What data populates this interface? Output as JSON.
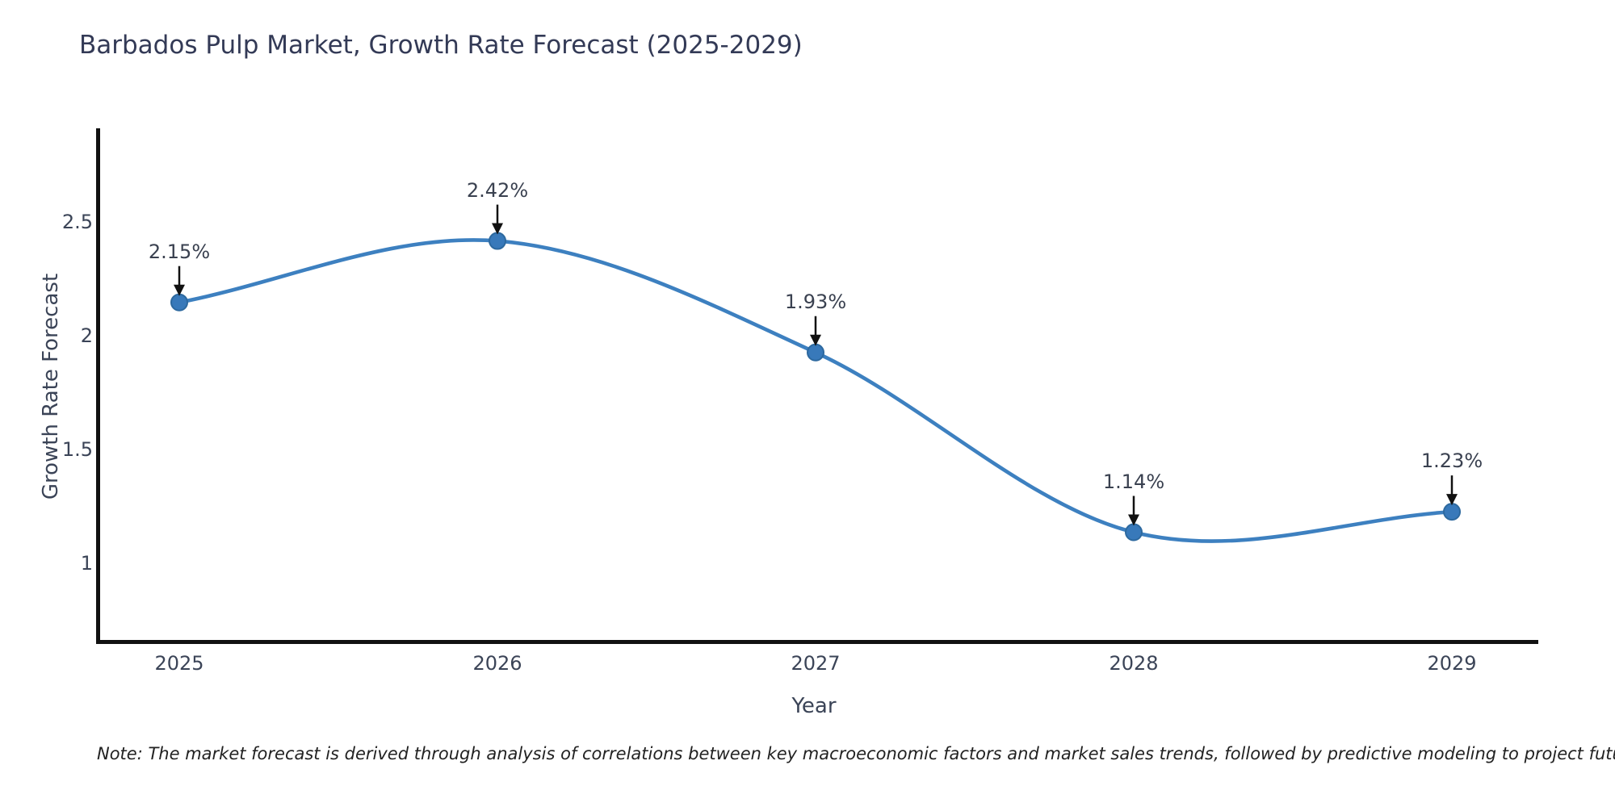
{
  "chart_data": {
    "type": "line",
    "title": "Barbados Pulp Market, Growth Rate Forecast (2025-2029)",
    "xlabel": "Year",
    "ylabel": "Growth Rate Forecast",
    "x": [
      2025,
      2026,
      2027,
      2028,
      2029
    ],
    "x_tick_labels": [
      "2025",
      "2026",
      "2027",
      "2028",
      "2029"
    ],
    "series": [
      {
        "name": "Growth Rate Forecast",
        "values": [
          2.15,
          2.42,
          1.93,
          1.14,
          1.23
        ]
      }
    ],
    "annotations": [
      "2.15%",
      "2.42%",
      "1.93%",
      "1.14%",
      "1.23%"
    ],
    "y_ticks": [
      1,
      1.5,
      2,
      2.5
    ],
    "y_tick_labels": [
      "1",
      "1.5",
      "2",
      "2.5"
    ],
    "xlim": [
      2024.74,
      2029.26
    ],
    "ylim": [
      0.68,
      2.91
    ],
    "grid": false,
    "legend_position": "none",
    "curve_style": "smooth-spline",
    "colors": {
      "line": "#3d80c0",
      "marker": "#3879ba",
      "marker_edge": "#2d699f",
      "arrow": "#111111",
      "axis": "#111111",
      "title_text": "#333a56",
      "tick_text": "#3b4457",
      "note_text": "#222222",
      "background": "#ffffff"
    }
  },
  "footnote": "Note: The market forecast is derived through analysis of correlations between key macroeconomic factors and market sales trends, followed by predictive modeling to project future sales"
}
